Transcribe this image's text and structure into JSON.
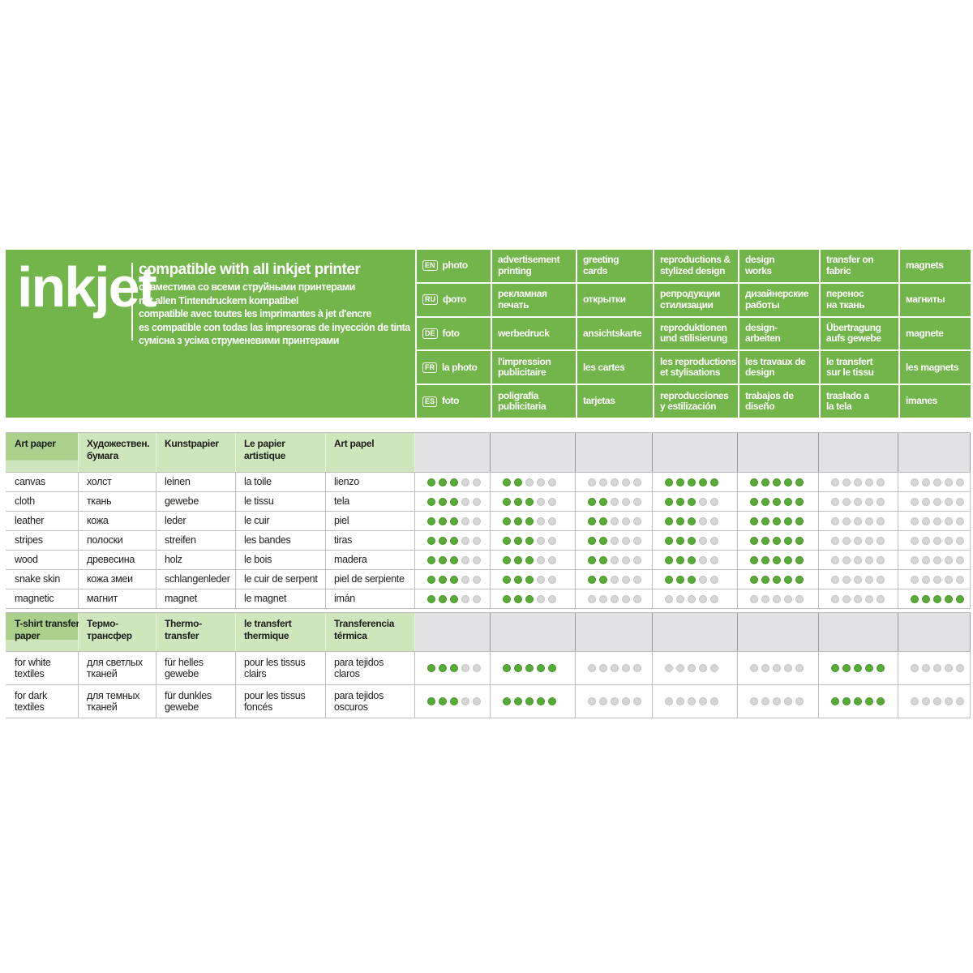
{
  "colors": {
    "band_green": "#72b54a",
    "header_green_light": "#cfe6bd",
    "header_green_dark": "#a9d18c",
    "header_gray": "#e2e2e4",
    "dot_green": "#57ac35",
    "dot_gray": "#d6d6d6",
    "grid_line": "#bdbdbd",
    "text": "#1d1d1b"
  },
  "brand": {
    "title": "inkjet",
    "lines": [
      "compatible with all inkjet printer",
      "совместима со всеми струйными принтерами",
      "mit allen Tintendruckern kompatibel",
      "compatible avec toutes les imprimantes à jet d'encre",
      "es compatible con todas las impresoras de inyección de tinta",
      "сумісна з усіма струменевими принтерами"
    ]
  },
  "matrix": {
    "rows": [
      {
        "lang": "EN",
        "cells": [
          "photo",
          "advertisement\nprinting",
          "greeting\ncards",
          "reproductions &\nstylized design",
          "design\nworks",
          "transfer on\nfabric",
          "magnets"
        ]
      },
      {
        "lang": "RU",
        "cells": [
          "фото",
          "рекламная\nпечать",
          "открытки",
          "репродукции\nстилизации",
          "дизайнерские\nработы",
          "перенос\nна ткань",
          "магниты"
        ]
      },
      {
        "lang": "DE",
        "cells": [
          "foto",
          "werbedruck",
          "ansichtskarte",
          "reproduktionen\nund stilisierung",
          "design-\narbeiten",
          "Übertragung\naufs gewebe",
          "magnete"
        ]
      },
      {
        "lang": "FR",
        "cells": [
          "la photo",
          "l'impression\npublicitaire",
          "les cartes",
          "les reproductions\net stylisations",
          "les travaux de\ndesign",
          "le transfert\nsur le tissu",
          "les magnets"
        ]
      },
      {
        "lang": "ES",
        "cells": [
          "foto",
          "poligrafía\npublicitaria",
          "tarjetas",
          "reproducciones\ny estilización",
          "trabajos de\ndiseño",
          "traslado a\nla tela",
          "imanes"
        ]
      }
    ]
  },
  "rating": {
    "max": 5
  },
  "table": {
    "sections": [
      {
        "headers": [
          "Art paper",
          "Художествен.\nбумага",
          "Kunstpapier",
          "Le papier\nartistique",
          "Art papel"
        ],
        "rows": [
          {
            "labels": [
              "canvas",
              "холст",
              "leinen",
              "la toile",
              "lienzo"
            ],
            "ratings": [
              3,
              2,
              0,
              5,
              5,
              0,
              0
            ]
          },
          {
            "labels": [
              "cloth",
              "ткань",
              "gewebe",
              "le tissu",
              "tela"
            ],
            "ratings": [
              3,
              3,
              2,
              3,
              5,
              0,
              0
            ]
          },
          {
            "labels": [
              "leather",
              "кожа",
              "leder",
              "le cuir",
              "piel"
            ],
            "ratings": [
              3,
              3,
              2,
              3,
              5,
              0,
              0
            ]
          },
          {
            "labels": [
              "stripes",
              "полоски",
              "streifen",
              "les bandes",
              "tiras"
            ],
            "ratings": [
              3,
              3,
              2,
              3,
              5,
              0,
              0
            ]
          },
          {
            "labels": [
              "wood",
              "древесина",
              "holz",
              "le bois",
              "madera"
            ],
            "ratings": [
              3,
              3,
              2,
              3,
              5,
              0,
              0
            ]
          },
          {
            "labels": [
              "snake skin",
              "кожа змеи",
              "schlangenleder",
              "le cuir de serpent",
              "piel de serpiente"
            ],
            "ratings": [
              3,
              3,
              2,
              3,
              5,
              0,
              0
            ]
          },
          {
            "labels": [
              "magnetic",
              "магнит",
              "magnet",
              "le magnet",
              "imán"
            ],
            "ratings": [
              3,
              3,
              0,
              0,
              0,
              0,
              5
            ]
          }
        ]
      },
      {
        "headers": [
          "T-shirt transfer\npaper",
          "Термо-\nтрансфер",
          "Thermo-\ntransfer",
          "le transfert\nthermique",
          "Transferencia\ntérmica"
        ],
        "rows": [
          {
            "labels": [
              "for white\ntextiles",
              "для светлых\nтканей",
              "für helles\ngewebe",
              "pour les tissus\nclairs",
              "para tejidos\nclaros"
            ],
            "ratings": [
              3,
              5,
              0,
              0,
              0,
              5,
              0
            ]
          },
          {
            "labels": [
              "for dark\ntextiles",
              "для темных\nтканей",
              "für dunkles\ngewebe",
              "pour les tissus\nfoncés",
              "para tejidos\noscuros"
            ],
            "ratings": [
              3,
              5,
              0,
              0,
              0,
              5,
              0
            ]
          }
        ]
      }
    ]
  }
}
